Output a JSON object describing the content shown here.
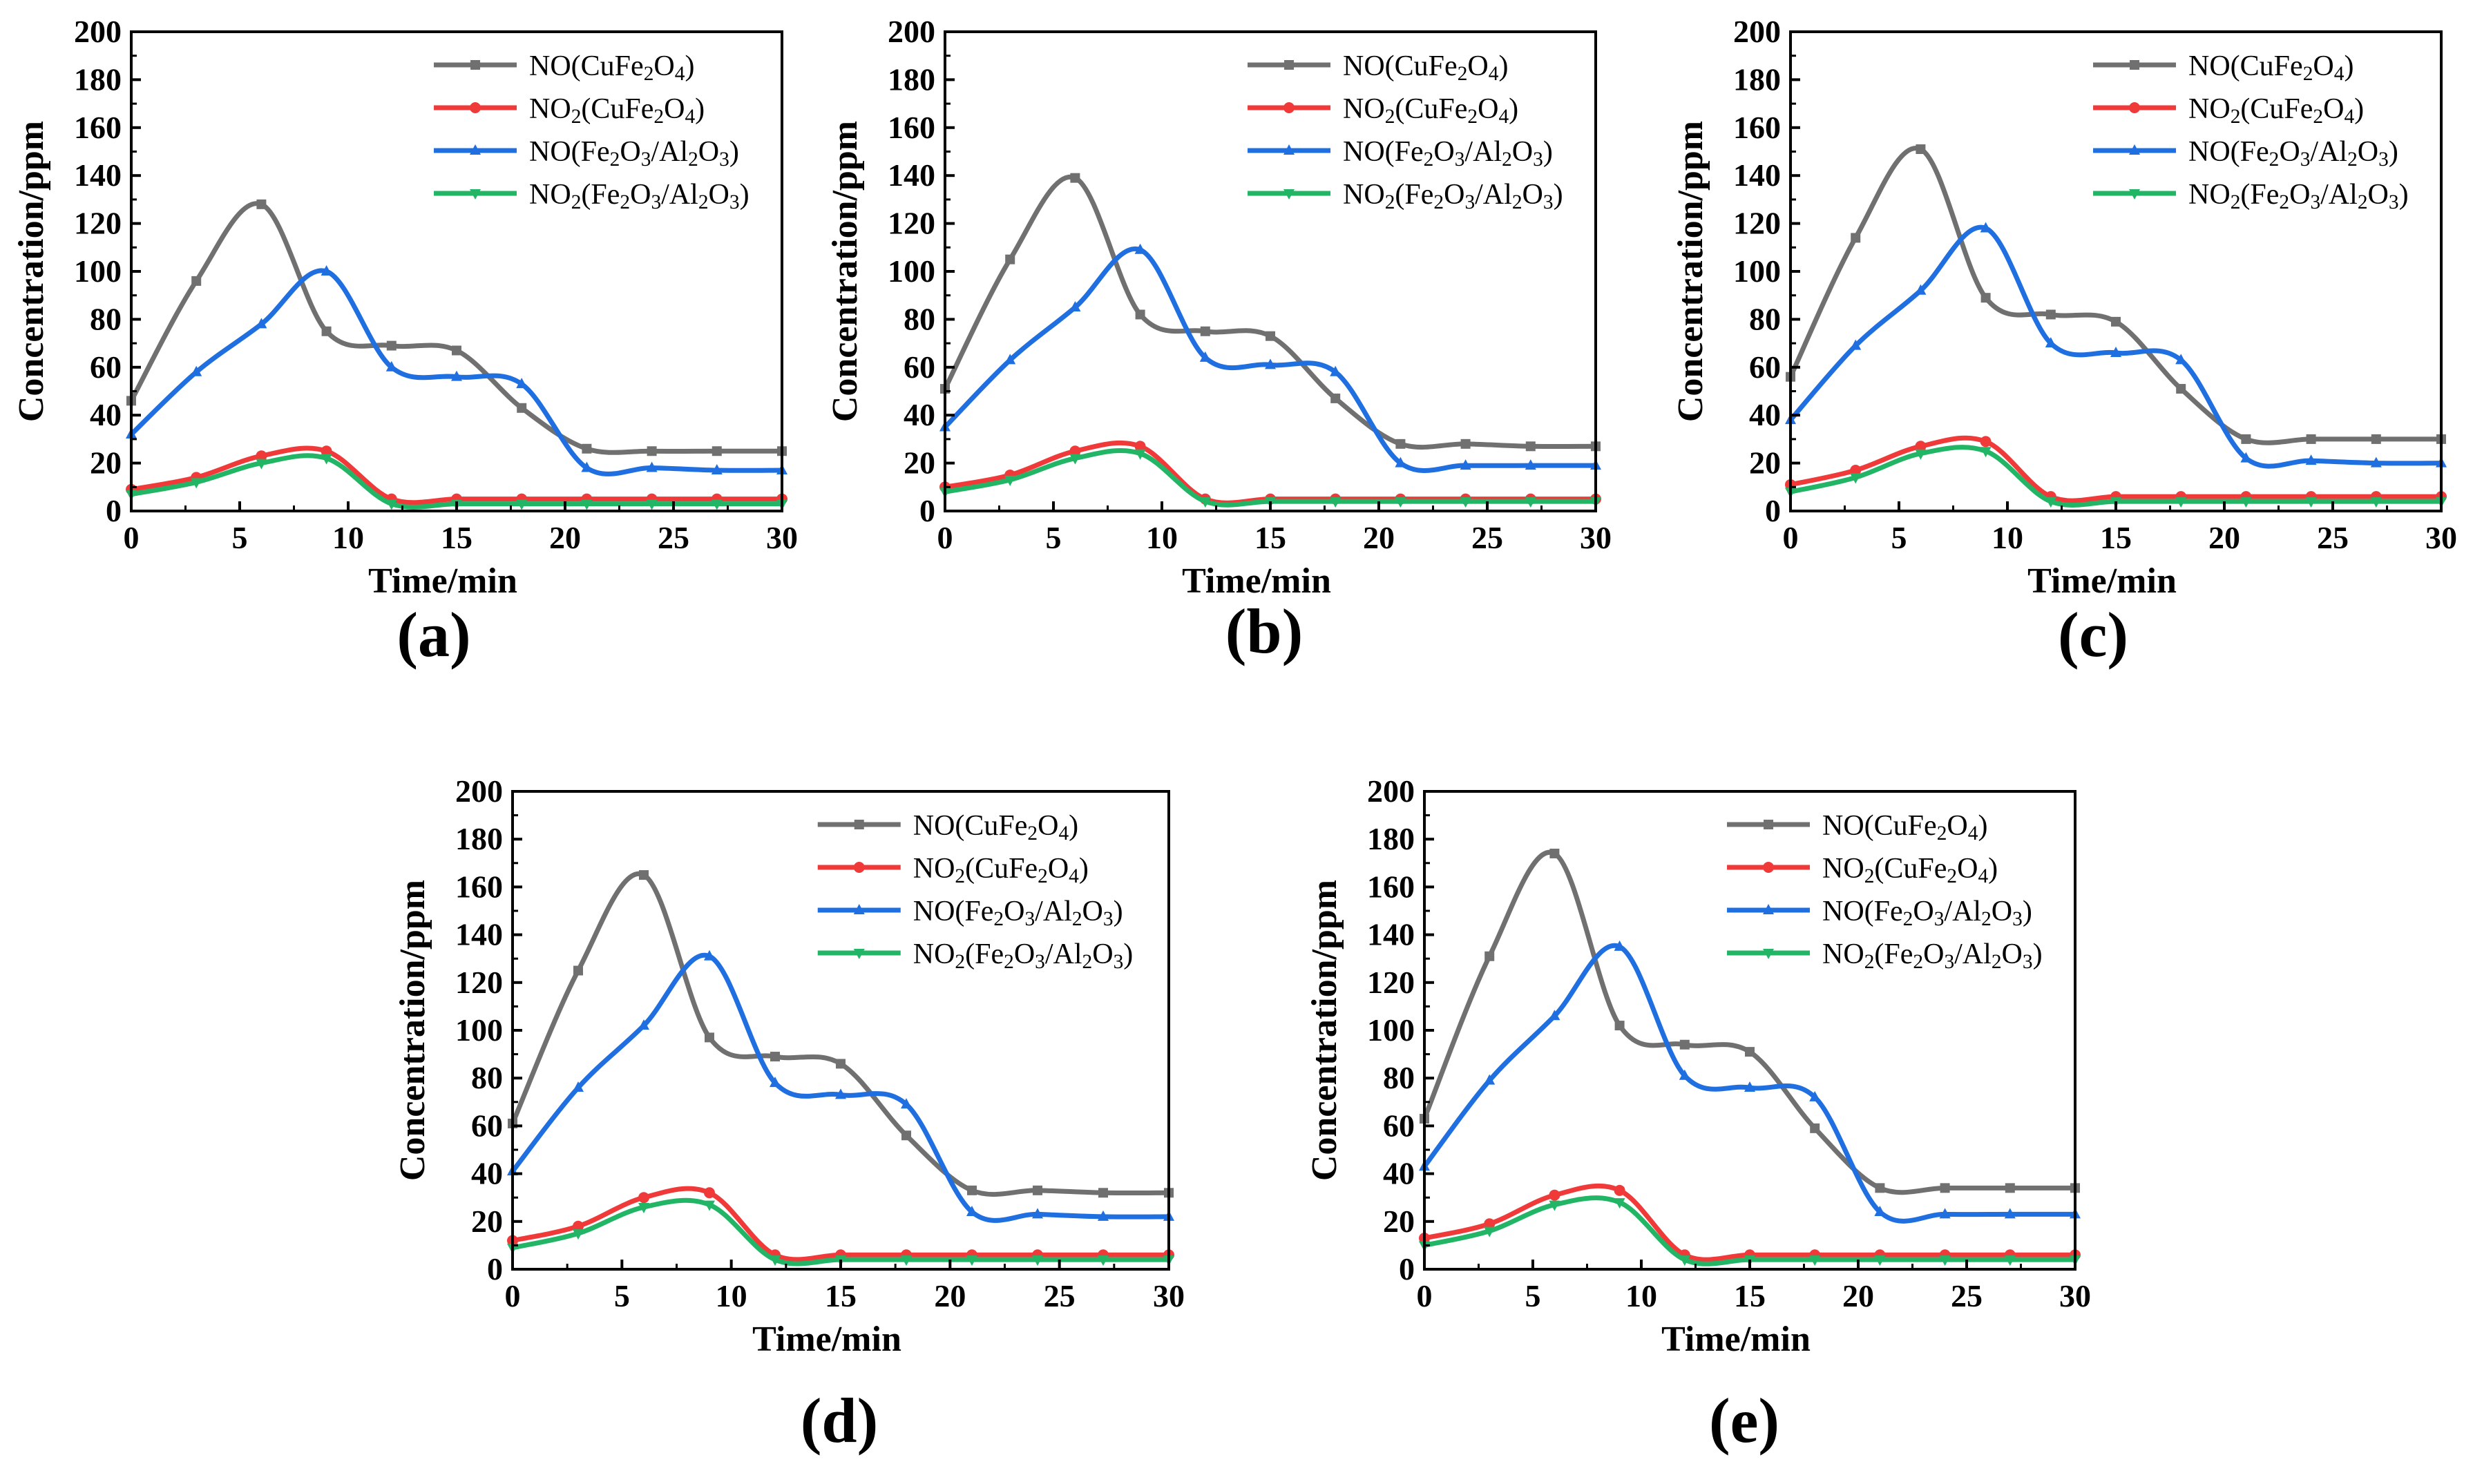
{
  "figure": {
    "panels": [
      "(a)",
      "(b)",
      "(c)",
      "(d)",
      "(e)"
    ]
  },
  "chart_data": [
    {
      "type": "line",
      "panel_label": "(a)",
      "xlabel": "Time/min",
      "ylabel": "Concentration/ppm",
      "xlim": [
        0,
        30
      ],
      "ylim": [
        0,
        200
      ],
      "xticks": [
        "0",
        "5",
        "10",
        "15",
        "20",
        "25",
        "30"
      ],
      "yticks": [
        "0",
        "20",
        "40",
        "60",
        "80",
        "100",
        "120",
        "140",
        "160",
        "180",
        "200"
      ],
      "legend_position": "top-right",
      "x": [
        0,
        3,
        6,
        9,
        12,
        15,
        18,
        21,
        24,
        27,
        30
      ],
      "series": [
        {
          "name": "NO(CuFe2O4)",
          "label_html": "NO(CuFe<sub>2</sub>O<sub>4</sub>)",
          "color": "#707070",
          "marker": "square",
          "values": [
            46,
            96,
            128,
            75,
            69,
            67,
            43,
            26,
            25,
            25,
            25
          ]
        },
        {
          "name": "NO2(CuFe2O4)",
          "label_html": "NO<sub>2</sub>(CuFe<sub>2</sub>O<sub>4</sub>)",
          "color": "#f03a3a",
          "marker": "circle",
          "values": [
            9,
            14,
            23,
            25,
            5,
            5,
            5,
            5,
            5,
            5,
            5
          ]
        },
        {
          "name": "NO(Fe2O3/Al2O3)",
          "label_html": "NO(Fe<sub>2</sub>O<sub>3</sub>/Al<sub>2</sub>O<sub>3</sub>)",
          "color": "#1f6fe0",
          "marker": "triangle-up",
          "values": [
            32,
            58,
            78,
            100,
            60,
            56,
            53,
            18,
            18,
            17,
            17
          ]
        },
        {
          "name": "NO2(Fe2O3/Al2O3)",
          "label_html": "NO<sub>2</sub>(Fe<sub>2</sub>O<sub>3</sub>/Al<sub>2</sub>O<sub>3</sub>)",
          "color": "#22b566",
          "marker": "triangle-down",
          "values": [
            7,
            12,
            20,
            22,
            3,
            3,
            3,
            3,
            3,
            3,
            3
          ]
        }
      ]
    },
    {
      "type": "line",
      "panel_label": "(b)",
      "xlabel": "Time/min",
      "ylabel": "Concentration/ppm",
      "xlim": [
        0,
        30
      ],
      "ylim": [
        0,
        200
      ],
      "xticks": [
        "0",
        "5",
        "10",
        "15",
        "20",
        "25",
        "30"
      ],
      "yticks": [
        "0",
        "20",
        "40",
        "60",
        "80",
        "100",
        "120",
        "140",
        "160",
        "180",
        "200"
      ],
      "legend_position": "top-right",
      "x": [
        0,
        3,
        6,
        9,
        12,
        15,
        18,
        21,
        24,
        27,
        30
      ],
      "series": [
        {
          "name": "NO(CuFe2O4)",
          "label_html": "NO(CuFe<sub>2</sub>O<sub>4</sub>)",
          "color": "#707070",
          "marker": "square",
          "values": [
            51,
            105,
            139,
            82,
            75,
            73,
            47,
            28,
            28,
            27,
            27
          ]
        },
        {
          "name": "NO2(CuFe2O4)",
          "label_html": "NO<sub>2</sub>(CuFe<sub>2</sub>O<sub>4</sub>)",
          "color": "#f03a3a",
          "marker": "circle",
          "values": [
            10,
            15,
            25,
            27,
            5,
            5,
            5,
            5,
            5,
            5,
            5
          ]
        },
        {
          "name": "NO(Fe2O3/Al2O3)",
          "label_html": "NO(Fe<sub>2</sub>O<sub>3</sub>/Al<sub>2</sub>O<sub>3</sub>)",
          "color": "#1f6fe0",
          "marker": "triangle-up",
          "values": [
            35,
            63,
            85,
            109,
            64,
            61,
            58,
            20,
            19,
            19,
            19
          ]
        },
        {
          "name": "NO2(Fe2O3/Al2O3)",
          "label_html": "NO<sub>2</sub>(Fe<sub>2</sub>O<sub>3</sub>/Al<sub>2</sub>O<sub>3</sub>)",
          "color": "#22b566",
          "marker": "triangle-down",
          "values": [
            8,
            13,
            22,
            24,
            4,
            4,
            4,
            4,
            4,
            4,
            4
          ]
        }
      ]
    },
    {
      "type": "line",
      "panel_label": "(c)",
      "xlabel": "Time/min",
      "ylabel": "Concentration/ppm",
      "xlim": [
        0,
        30
      ],
      "ylim": [
        0,
        200
      ],
      "xticks": [
        "0",
        "5",
        "10",
        "15",
        "20",
        "25",
        "30"
      ],
      "yticks": [
        "0",
        "20",
        "40",
        "60",
        "80",
        "100",
        "120",
        "140",
        "160",
        "180",
        "200"
      ],
      "legend_position": "top-right",
      "x": [
        0,
        3,
        6,
        9,
        12,
        15,
        18,
        21,
        24,
        27,
        30
      ],
      "series": [
        {
          "name": "NO(CuFe2O4)",
          "label_html": "NO(CuFe<sub>2</sub>O<sub>4</sub>)",
          "color": "#707070",
          "marker": "square",
          "values": [
            56,
            114,
            151,
            89,
            82,
            79,
            51,
            30,
            30,
            30,
            30
          ]
        },
        {
          "name": "NO2(CuFe2O4)",
          "label_html": "NO<sub>2</sub>(CuFe<sub>2</sub>O<sub>4</sub>)",
          "color": "#f03a3a",
          "marker": "circle",
          "values": [
            11,
            17,
            27,
            29,
            6,
            6,
            6,
            6,
            6,
            6,
            6
          ]
        },
        {
          "name": "NO(Fe2O3/Al2O3)",
          "label_html": "NO(Fe<sub>2</sub>O<sub>3</sub>/Al<sub>2</sub>O<sub>3</sub>)",
          "color": "#1f6fe0",
          "marker": "triangle-up",
          "values": [
            38,
            69,
            92,
            118,
            70,
            66,
            63,
            22,
            21,
            20,
            20
          ]
        },
        {
          "name": "NO2(Fe2O3/Al2O3)",
          "label_html": "NO<sub>2</sub>(Fe<sub>2</sub>O<sub>3</sub>/Al<sub>2</sub>O<sub>3</sub>)",
          "color": "#22b566",
          "marker": "triangle-down",
          "values": [
            8,
            14,
            24,
            25,
            4,
            4,
            4,
            4,
            4,
            4,
            4
          ]
        }
      ]
    },
    {
      "type": "line",
      "panel_label": "(d)",
      "xlabel": "Time/min",
      "ylabel": "Concentration/ppm",
      "xlim": [
        0,
        30
      ],
      "ylim": [
        0,
        200
      ],
      "xticks": [
        "0",
        "5",
        "10",
        "15",
        "20",
        "25",
        "30"
      ],
      "yticks": [
        "0",
        "20",
        "40",
        "60",
        "80",
        "100",
        "120",
        "140",
        "160",
        "180",
        "200"
      ],
      "legend_position": "top-right",
      "x": [
        0,
        3,
        6,
        9,
        12,
        15,
        18,
        21,
        24,
        27,
        30
      ],
      "series": [
        {
          "name": "NO(CuFe2O4)",
          "label_html": "NO(CuFe<sub>2</sub>O<sub>4</sub>)",
          "color": "#707070",
          "marker": "square",
          "values": [
            61,
            125,
            165,
            97,
            89,
            86,
            56,
            33,
            33,
            32,
            32
          ]
        },
        {
          "name": "NO2(CuFe2O4)",
          "label_html": "NO<sub>2</sub>(CuFe<sub>2</sub>O<sub>4</sub>)",
          "color": "#f03a3a",
          "marker": "circle",
          "values": [
            12,
            18,
            30,
            32,
            6,
            6,
            6,
            6,
            6,
            6,
            6
          ]
        },
        {
          "name": "NO(Fe2O3/Al2O3)",
          "label_html": "NO(Fe<sub>2</sub>O<sub>3</sub>/Al<sub>2</sub>O<sub>3</sub>)",
          "color": "#1f6fe0",
          "marker": "triangle-up",
          "values": [
            41,
            76,
            102,
            131,
            78,
            73,
            69,
            24,
            23,
            22,
            22
          ]
        },
        {
          "name": "NO2(Fe2O3/Al2O3)",
          "label_html": "NO<sub>2</sub>(Fe<sub>2</sub>O<sub>3</sub>/Al<sub>2</sub>O<sub>3</sub>)",
          "color": "#22b566",
          "marker": "triangle-down",
          "values": [
            9,
            15,
            26,
            27,
            4,
            4,
            4,
            4,
            4,
            4,
            4
          ]
        }
      ]
    },
    {
      "type": "line",
      "panel_label": "(e)",
      "xlabel": "Time/min",
      "ylabel": "Concentration/ppm",
      "xlim": [
        0,
        30
      ],
      "ylim": [
        0,
        200
      ],
      "xticks": [
        "0",
        "5",
        "10",
        "15",
        "20",
        "25",
        "30"
      ],
      "yticks": [
        "0",
        "20",
        "40",
        "60",
        "80",
        "100",
        "120",
        "140",
        "160",
        "180",
        "200"
      ],
      "legend_position": "top-right",
      "x": [
        0,
        3,
        6,
        9,
        12,
        15,
        18,
        21,
        24,
        27,
        30
      ],
      "series": [
        {
          "name": "NO(CuFe2O4)",
          "label_html": "NO(CuFe<sub>2</sub>O<sub>4</sub>)",
          "color": "#707070",
          "marker": "square",
          "values": [
            63,
            131,
            174,
            102,
            94,
            91,
            59,
            34,
            34,
            34,
            34
          ]
        },
        {
          "name": "NO2(CuFe2O4)",
          "label_html": "NO<sub>2</sub>(CuFe<sub>2</sub>O<sub>4</sub>)",
          "color": "#f03a3a",
          "marker": "circle",
          "values": [
            13,
            19,
            31,
            33,
            6,
            6,
            6,
            6,
            6,
            6,
            6
          ]
        },
        {
          "name": "NO(Fe2O3/Al2O3)",
          "label_html": "NO(Fe<sub>2</sub>O<sub>3</sub>/Al<sub>2</sub>O<sub>3</sub>)",
          "color": "#1f6fe0",
          "marker": "triangle-up",
          "values": [
            43,
            79,
            106,
            135,
            81,
            76,
            72,
            24,
            23,
            23,
            23
          ]
        },
        {
          "name": "NO2(Fe2O3/Al2O3)",
          "label_html": "NO<sub>2</sub>(Fe<sub>2</sub>O<sub>3</sub>/Al<sub>2</sub>O<sub>3</sub>)",
          "color": "#22b566",
          "marker": "triangle-down",
          "values": [
            10,
            16,
            27,
            28,
            4,
            4,
            4,
            4,
            4,
            4,
            4
          ]
        }
      ]
    }
  ]
}
